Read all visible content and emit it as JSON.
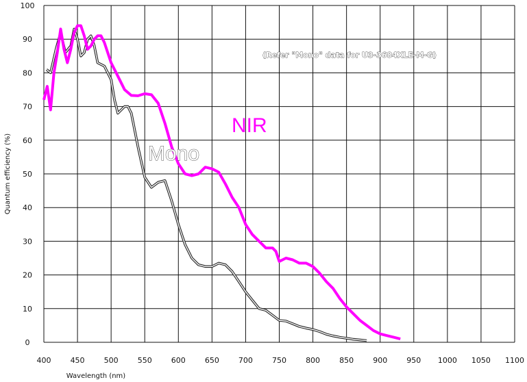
{
  "chart_data": {
    "type": "line",
    "title": "",
    "xlabel": "Wavelength (nm)",
    "ylabel": "Quantum efficiency (%)",
    "xlim": [
      400,
      1100
    ],
    "ylim": [
      0,
      100
    ],
    "x_ticks": [
      "400",
      "450",
      "500",
      "550",
      "600",
      "650",
      "700",
      "750",
      "800",
      "850",
      "900",
      "950",
      "1000",
      "1050",
      "1100"
    ],
    "y_ticks": [
      "0",
      "10",
      "20",
      "30",
      "40",
      "50",
      "60",
      "70",
      "80",
      "90",
      "100"
    ],
    "grid": true,
    "annotation": "(Refer \"Mono\" data for U3-3684XLE-M-G)",
    "series": [
      {
        "name": "NIR",
        "color": "#ff00ff",
        "points": [
          [
            400,
            72
          ],
          [
            405,
            76
          ],
          [
            410,
            69
          ],
          [
            415,
            80
          ],
          [
            420,
            86
          ],
          [
            425,
            93
          ],
          [
            430,
            87
          ],
          [
            435,
            83
          ],
          [
            440,
            87
          ],
          [
            445,
            92
          ],
          [
            450,
            94
          ],
          [
            455,
            94
          ],
          [
            460,
            91
          ],
          [
            465,
            87
          ],
          [
            470,
            88
          ],
          [
            475,
            90
          ],
          [
            480,
            91
          ],
          [
            485,
            91
          ],
          [
            490,
            89
          ],
          [
            495,
            86
          ],
          [
            500,
            83
          ],
          [
            510,
            79
          ],
          [
            520,
            75
          ],
          [
            530,
            73.3
          ],
          [
            540,
            73.2
          ],
          [
            550,
            73.8
          ],
          [
            560,
            73.5
          ],
          [
            570,
            71
          ],
          [
            580,
            65
          ],
          [
            590,
            58
          ],
          [
            600,
            53
          ],
          [
            610,
            50
          ],
          [
            620,
            49.5
          ],
          [
            630,
            50
          ],
          [
            640,
            52
          ],
          [
            650,
            51.5
          ],
          [
            660,
            50.5
          ],
          [
            670,
            47
          ],
          [
            680,
            43
          ],
          [
            690,
            40
          ],
          [
            700,
            35
          ],
          [
            710,
            32
          ],
          [
            720,
            30
          ],
          [
            730,
            28
          ],
          [
            740,
            28
          ],
          [
            745,
            27
          ],
          [
            750,
            24
          ],
          [
            760,
            25
          ],
          [
            770,
            24.5
          ],
          [
            780,
            23.5
          ],
          [
            790,
            23.5
          ],
          [
            800,
            22.5
          ],
          [
            810,
            20.5
          ],
          [
            820,
            18
          ],
          [
            830,
            16
          ],
          [
            840,
            13
          ],
          [
            850,
            10.5
          ],
          [
            860,
            8.5
          ],
          [
            870,
            6.5
          ],
          [
            880,
            5
          ],
          [
            890,
            3.5
          ],
          [
            900,
            2.5
          ],
          [
            910,
            2
          ],
          [
            920,
            1.5
          ],
          [
            930,
            1
          ]
        ]
      },
      {
        "name": "Mono",
        "color": "#222222",
        "points": [
          [
            404,
            81
          ],
          [
            410,
            80
          ],
          [
            418,
            87
          ],
          [
            425,
            92
          ],
          [
            432,
            86
          ],
          [
            440,
            88
          ],
          [
            445,
            93
          ],
          [
            450,
            90
          ],
          [
            455,
            85
          ],
          [
            460,
            86
          ],
          [
            465,
            90
          ],
          [
            470,
            91
          ],
          [
            475,
            88
          ],
          [
            480,
            83
          ],
          [
            490,
            82
          ],
          [
            500,
            78
          ],
          [
            505,
            72
          ],
          [
            510,
            68
          ],
          [
            520,
            70
          ],
          [
            525,
            70
          ],
          [
            530,
            68
          ],
          [
            540,
            58
          ],
          [
            550,
            49
          ],
          [
            560,
            46
          ],
          [
            570,
            47.5
          ],
          [
            580,
            48
          ],
          [
            590,
            42
          ],
          [
            600,
            35
          ],
          [
            610,
            29
          ],
          [
            620,
            25
          ],
          [
            630,
            23
          ],
          [
            640,
            22.5
          ],
          [
            650,
            22.5
          ],
          [
            660,
            23.5
          ],
          [
            670,
            23
          ],
          [
            680,
            21
          ],
          [
            690,
            18
          ],
          [
            700,
            15
          ],
          [
            710,
            12.5
          ],
          [
            720,
            10
          ],
          [
            730,
            9.5
          ],
          [
            740,
            8
          ],
          [
            750,
            6.5
          ],
          [
            760,
            6.3
          ],
          [
            770,
            5.5
          ],
          [
            780,
            4.7
          ],
          [
            790,
            4.2
          ],
          [
            800,
            3.8
          ],
          [
            810,
            3.2
          ],
          [
            820,
            2.4
          ],
          [
            830,
            1.9
          ],
          [
            840,
            1.5
          ],
          [
            850,
            1.2
          ],
          [
            860,
            0.9
          ],
          [
            870,
            0.7
          ],
          [
            880,
            0.5
          ]
        ]
      }
    ]
  }
}
